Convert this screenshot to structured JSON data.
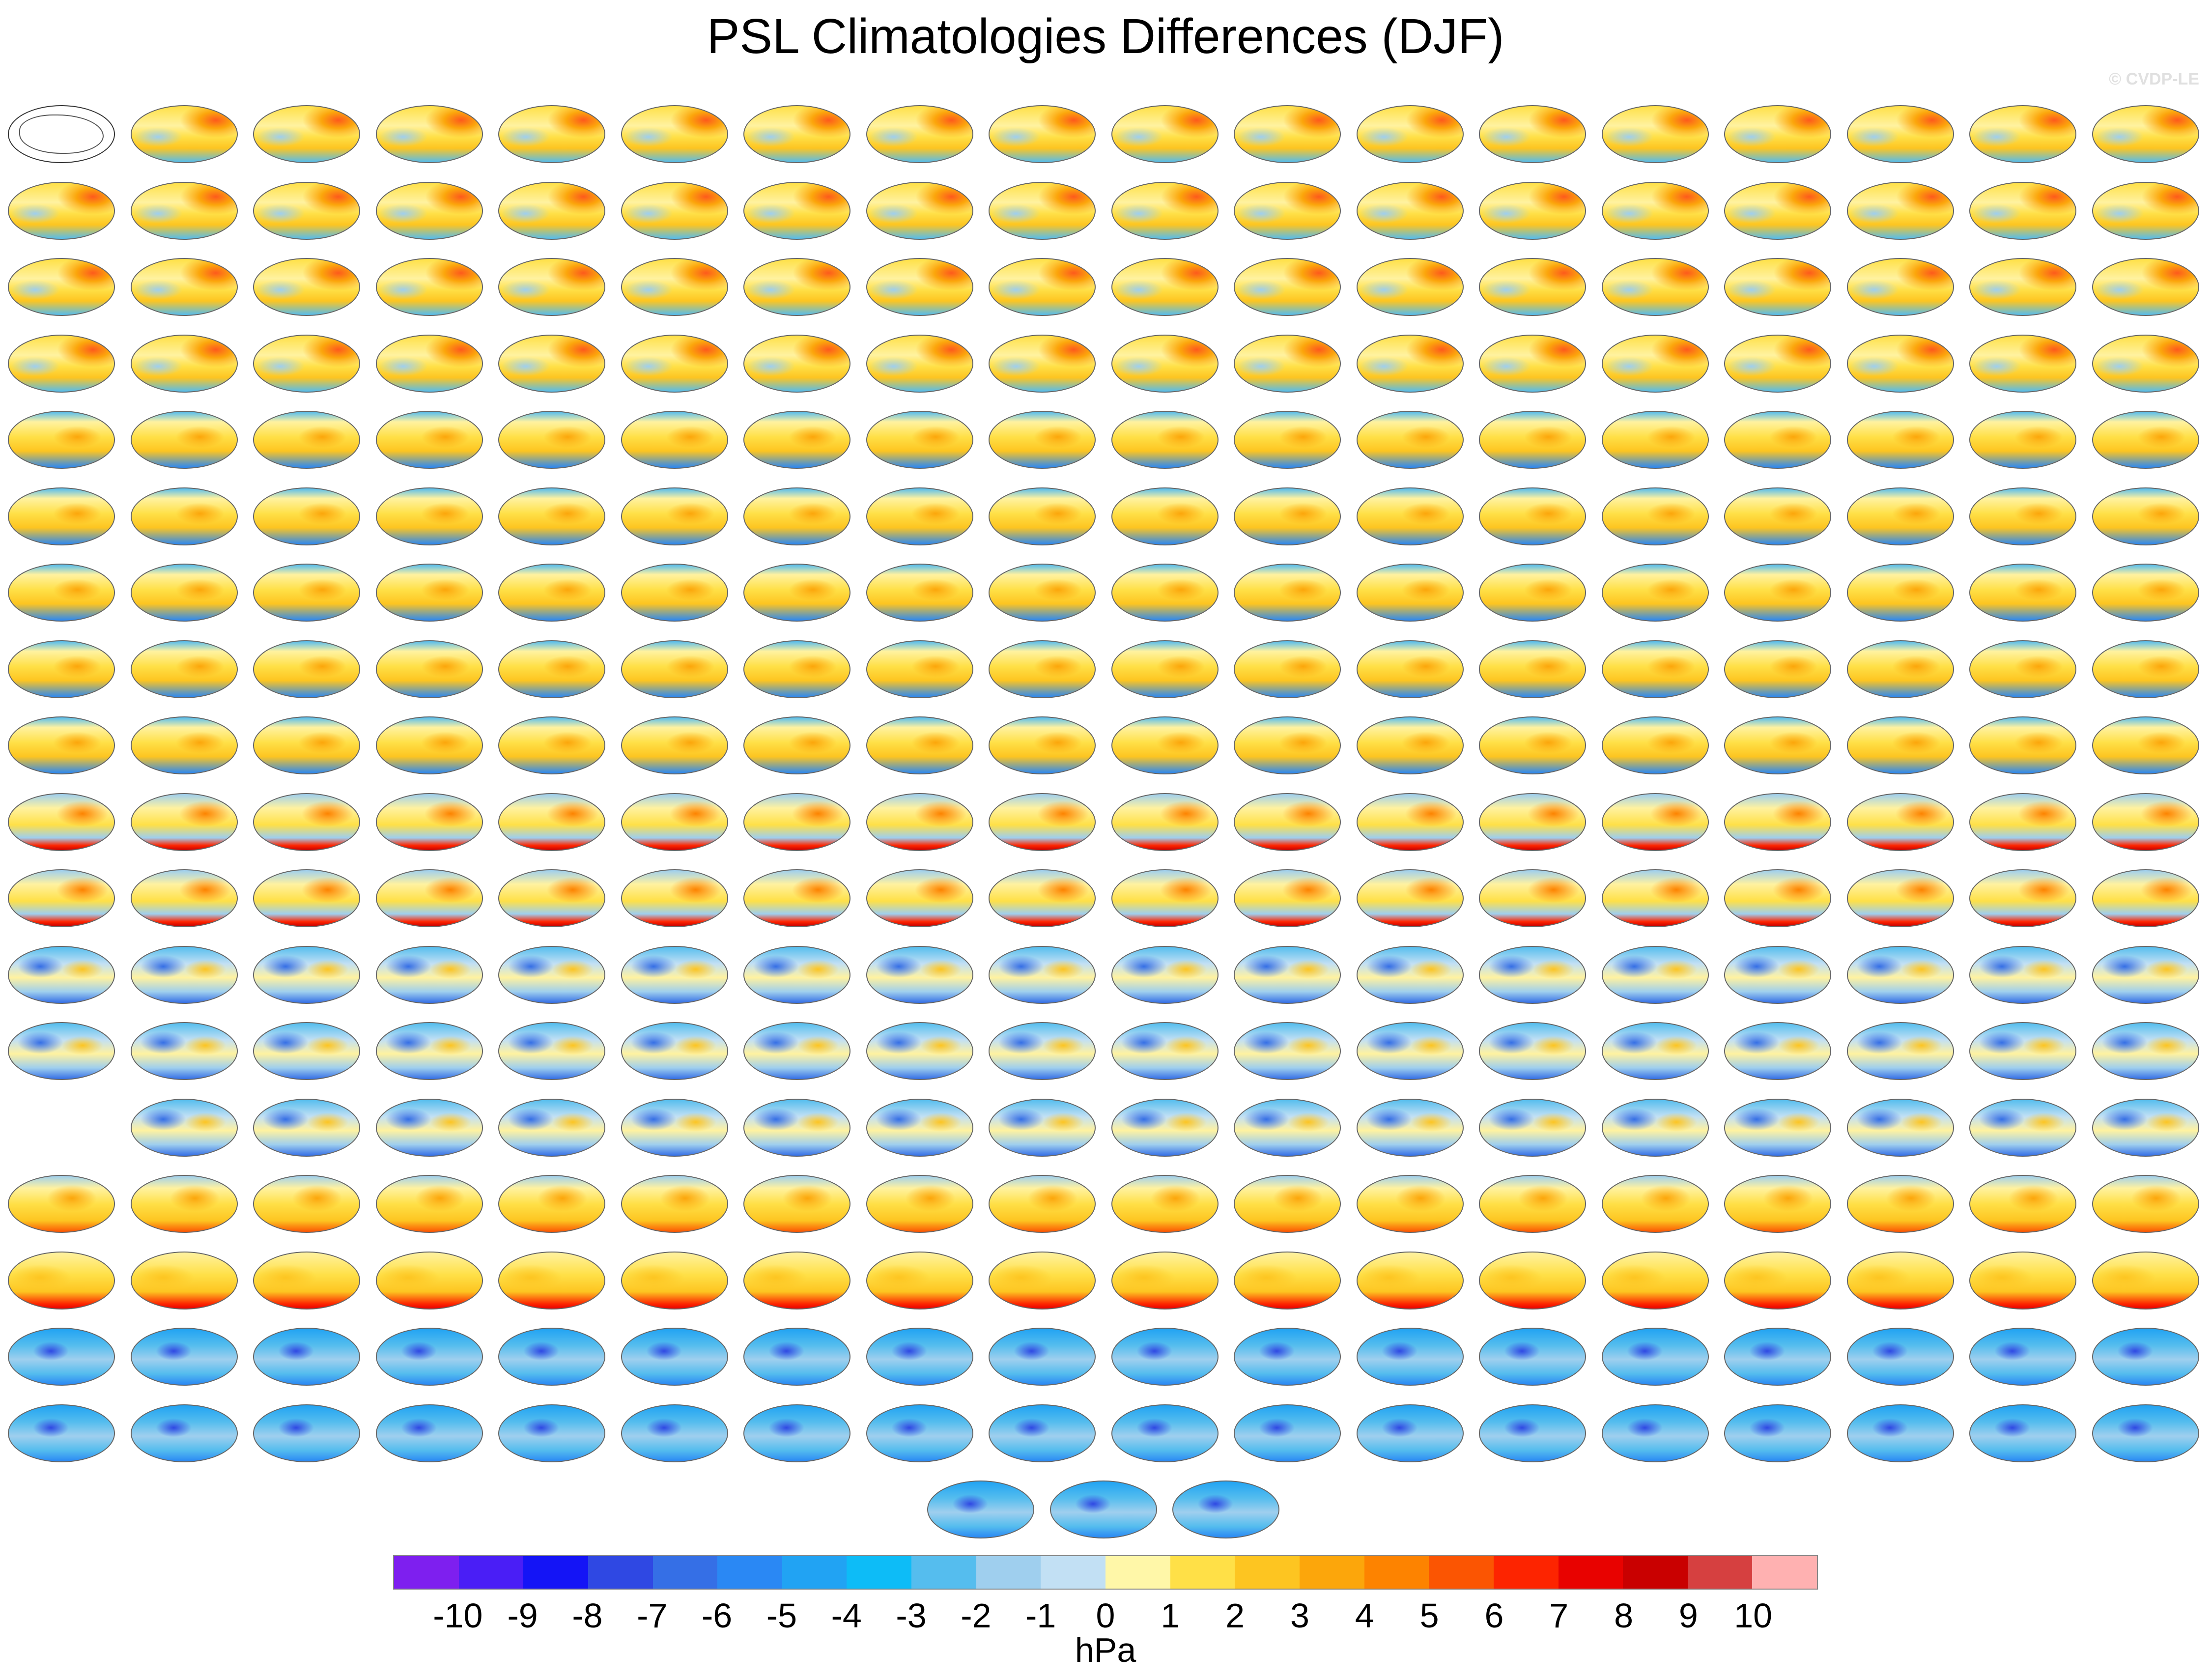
{
  "title": "PSL Climatologies Differences (DJF)",
  "watermark": "© CVDP-LE",
  "grid": {
    "rows": [
      {
        "count": 18,
        "style": "mixed-warm",
        "first": "ref"
      },
      {
        "count": 18,
        "style": "mixed-warm"
      },
      {
        "count": 18,
        "style": "mixed-warm"
      },
      {
        "count": 18,
        "style": "mixed-warm"
      },
      {
        "count": 18,
        "style": "warm-band"
      },
      {
        "count": 18,
        "style": "warm-band"
      },
      {
        "count": 18,
        "style": "warm-band"
      },
      {
        "count": 18,
        "style": "warm-band"
      },
      {
        "count": 18,
        "style": "warm-band"
      },
      {
        "count": 18,
        "style": "warm-red"
      },
      {
        "count": 18,
        "style": "warm-red"
      },
      {
        "count": 18,
        "style": "cool-mixed"
      },
      {
        "count": 18,
        "style": "cool-mixed"
      },
      {
        "count": 17,
        "style": "cool-mixed",
        "offset": 1
      },
      {
        "count": 18,
        "style": "warm-yellow"
      },
      {
        "count": 18,
        "style": "warm-yellow-blue"
      },
      {
        "count": 18,
        "style": "blue"
      },
      {
        "count": 18,
        "style": "blue"
      },
      {
        "count": 3,
        "style": "blue",
        "centered": true
      }
    ]
  },
  "colorbar": {
    "colors": [
      "#7e1fef",
      "#4a1ef6",
      "#1414f6",
      "#2f48e3",
      "#356fe6",
      "#2a88f4",
      "#21a3f3",
      "#0dbcf7",
      "#55bdee",
      "#9fcfee",
      "#c2e0f4",
      "#fff7a8",
      "#ffe047",
      "#fdc521",
      "#fca60b",
      "#fd8300",
      "#fb5502",
      "#fd2400",
      "#e80200",
      "#c90000",
      "#d64040",
      "#ffb1b1"
    ],
    "labels": [
      "-10",
      "-9",
      "-8",
      "-7",
      "-6",
      "-5",
      "-4",
      "-3",
      "-2",
      "-1",
      "0",
      "1",
      "2",
      "3",
      "4",
      "5",
      "6",
      "7",
      "8",
      "9",
      "10"
    ],
    "units": "hPa"
  }
}
